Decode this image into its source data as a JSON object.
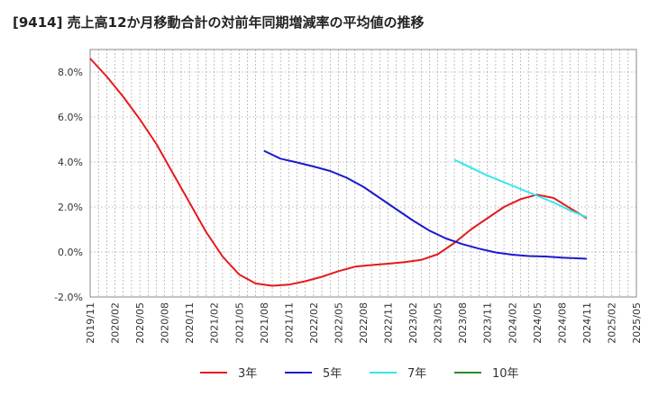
{
  "title": "[9414]  売上高12か月移動合計の対前年同期増減率の平均値の推移",
  "chart_data": {
    "type": "line",
    "title": "[9414]  売上高12か月移動合計の対前年同期増減率の平均値の推移",
    "xlabel": "",
    "ylabel": "",
    "x_ticks": [
      "2019/11",
      "2020/02",
      "2020/05",
      "2020/08",
      "2020/11",
      "2021/02",
      "2021/05",
      "2021/08",
      "2021/11",
      "2022/02",
      "2022/05",
      "2022/08",
      "2022/11",
      "2023/02",
      "2023/05",
      "2023/08",
      "2023/11",
      "2024/02",
      "2024/05",
      "2024/08",
      "2024/11",
      "2025/02",
      "2025/05"
    ],
    "xlim": [
      "2019/11",
      "2025/05"
    ],
    "y_ticks": [
      -2.0,
      0.0,
      2.0,
      4.0,
      6.0,
      8.0
    ],
    "y_tick_labels": [
      "-2.0%",
      "0.0%",
      "2.0%",
      "4.0%",
      "6.0%",
      "8.0%"
    ],
    "ylim": [
      -2.0,
      9.0
    ],
    "grid": true,
    "legend_position": "bottom",
    "series": [
      {
        "name": "3年",
        "color": "#e41a1c",
        "points": [
          [
            "2019/11",
            8.6
          ],
          [
            "2020/01",
            7.8
          ],
          [
            "2020/03",
            6.9
          ],
          [
            "2020/05",
            5.9
          ],
          [
            "2020/07",
            4.8
          ],
          [
            "2020/09",
            3.5
          ],
          [
            "2020/11",
            2.2
          ],
          [
            "2021/01",
            0.9
          ],
          [
            "2021/03",
            -0.2
          ],
          [
            "2021/05",
            -1.0
          ],
          [
            "2021/07",
            -1.4
          ],
          [
            "2021/09",
            -1.5
          ],
          [
            "2021/11",
            -1.45
          ],
          [
            "2022/01",
            -1.3
          ],
          [
            "2022/03",
            -1.1
          ],
          [
            "2022/05",
            -0.85
          ],
          [
            "2022/07",
            -0.65
          ],
          [
            "2022/09",
            -0.58
          ],
          [
            "2022/11",
            -0.52
          ],
          [
            "2023/01",
            -0.45
          ],
          [
            "2023/03",
            -0.35
          ],
          [
            "2023/05",
            -0.1
          ],
          [
            "2023/07",
            0.4
          ],
          [
            "2023/09",
            1.0
          ],
          [
            "2023/11",
            1.5
          ],
          [
            "2024/01",
            2.0
          ],
          [
            "2024/03",
            2.35
          ],
          [
            "2024/05",
            2.55
          ],
          [
            "2024/07",
            2.4
          ],
          [
            "2024/09",
            1.95
          ],
          [
            "2024/11",
            1.5
          ]
        ]
      },
      {
        "name": "5年",
        "color": "#1a1acd",
        "points": [
          [
            "2021/08",
            4.5
          ],
          [
            "2021/10",
            4.15
          ],
          [
            "2021/12",
            3.98
          ],
          [
            "2022/02",
            3.8
          ],
          [
            "2022/04",
            3.6
          ],
          [
            "2022/06",
            3.3
          ],
          [
            "2022/08",
            2.9
          ],
          [
            "2022/10",
            2.4
          ],
          [
            "2022/12",
            1.9
          ],
          [
            "2023/02",
            1.4
          ],
          [
            "2023/04",
            0.95
          ],
          [
            "2023/06",
            0.6
          ],
          [
            "2023/08",
            0.35
          ],
          [
            "2023/10",
            0.15
          ],
          [
            "2023/12",
            -0.02
          ],
          [
            "2024/02",
            -0.12
          ],
          [
            "2024/04",
            -0.18
          ],
          [
            "2024/06",
            -0.2
          ],
          [
            "2024/08",
            -0.25
          ],
          [
            "2024/11",
            -0.3
          ]
        ]
      },
      {
        "name": "7年",
        "color": "#33e6f0",
        "points": [
          [
            "2023/07",
            4.1
          ],
          [
            "2023/09",
            3.75
          ],
          [
            "2023/11",
            3.4
          ],
          [
            "2024/01",
            3.1
          ],
          [
            "2024/03",
            2.8
          ],
          [
            "2024/05",
            2.5
          ],
          [
            "2024/07",
            2.2
          ],
          [
            "2024/09",
            1.85
          ],
          [
            "2024/11",
            1.55
          ]
        ]
      },
      {
        "name": "10年",
        "color": "#2a8a2a",
        "points": []
      }
    ]
  }
}
